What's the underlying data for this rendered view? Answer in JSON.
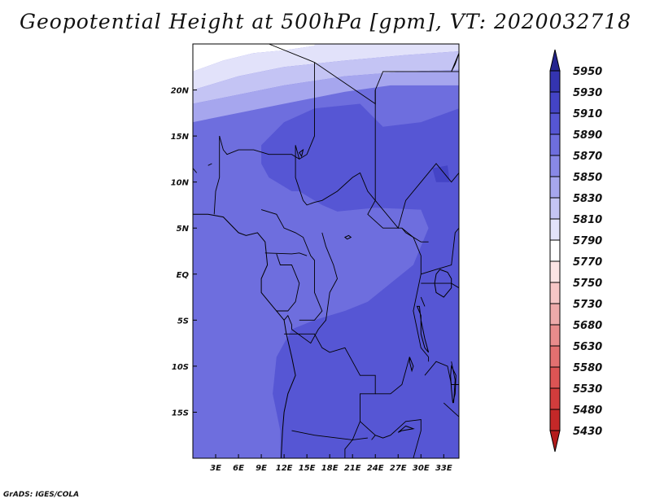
{
  "title": "Geopotential Height at 500hPa [gpm], VT: 2020032718",
  "credit": "GrADS: IGES/COLA",
  "chart_data": {
    "type": "heatmap",
    "lon_range": [
      0,
      35
    ],
    "lat_range": [
      -20,
      25
    ],
    "lon_ticks": [
      {
        "value": 3,
        "label": "3E"
      },
      {
        "value": 6,
        "label": "6E"
      },
      {
        "value": 9,
        "label": "9E"
      },
      {
        "value": 12,
        "label": "12E"
      },
      {
        "value": 15,
        "label": "15E"
      },
      {
        "value": 18,
        "label": "18E"
      },
      {
        "value": 21,
        "label": "21E"
      },
      {
        "value": 24,
        "label": "24E"
      },
      {
        "value": 27,
        "label": "27E"
      },
      {
        "value": 30,
        "label": "30E"
      },
      {
        "value": 33,
        "label": "33E"
      }
    ],
    "lat_ticks": [
      {
        "value": 20,
        "label": "20N"
      },
      {
        "value": 15,
        "label": "15N"
      },
      {
        "value": 10,
        "label": "10N"
      },
      {
        "value": 5,
        "label": "5N"
      },
      {
        "value": 0,
        "label": "EQ"
      },
      {
        "value": -5,
        "label": "5S"
      },
      {
        "value": -10,
        "label": "10S"
      },
      {
        "value": -15,
        "label": "15S"
      }
    ],
    "colorbar": {
      "levels": [
        "5430",
        "5480",
        "5530",
        "5580",
        "5630",
        "5680",
        "5730",
        "5750",
        "5770",
        "5790",
        "5810",
        "5830",
        "5850",
        "5870",
        "5890",
        "5910",
        "5930",
        "5950"
      ],
      "colors": [
        "#b41c1c",
        "#c42828",
        "#d23c3c",
        "#dc5454",
        "#e27070",
        "#e88c8c",
        "#eeaaaa",
        "#f6c6c6",
        "#fce4e4",
        "#ffffff",
        "#e2e2fa",
        "#c4c4f4",
        "#a6a6ee",
        "#8888e6",
        "#6e6ede",
        "#5656d4",
        "#4444c6",
        "#3434b0",
        "#24248e"
      ]
    },
    "field": [
      {
        "level": "5770",
        "color": "#fce4e4",
        "polygon": [
          [
            0,
            23.5
          ],
          [
            3,
            24
          ],
          [
            6,
            25
          ],
          [
            0,
            25
          ]
        ]
      },
      {
        "level": "5790",
        "color": "#ffffff",
        "polygon": [
          [
            0,
            22
          ],
          [
            4,
            23.2
          ],
          [
            8,
            24
          ],
          [
            12,
            24.3
          ],
          [
            16,
            24.8
          ],
          [
            16,
            25
          ],
          [
            0,
            25
          ]
        ]
      },
      {
        "level": "5810",
        "color": "#e2e2fa",
        "polygon": [
          [
            0,
            20
          ],
          [
            6,
            21.5
          ],
          [
            12,
            22.5
          ],
          [
            20,
            23.2
          ],
          [
            28,
            23.8
          ],
          [
            35,
            24.2
          ],
          [
            35,
            25
          ],
          [
            16,
            25
          ],
          [
            16,
            24.8
          ],
          [
            12,
            24.3
          ],
          [
            8,
            24
          ],
          [
            4,
            23.2
          ],
          [
            0,
            22
          ]
        ]
      },
      {
        "level": "5830",
        "color": "#c4c4f4",
        "polygon": [
          [
            0,
            18.5
          ],
          [
            6,
            19.5
          ],
          [
            12,
            20.5
          ],
          [
            20,
            21.5
          ],
          [
            28,
            22
          ],
          [
            35,
            22.2
          ],
          [
            35,
            24.2
          ],
          [
            28,
            23.8
          ],
          [
            20,
            23.2
          ],
          [
            12,
            22.5
          ],
          [
            6,
            21.5
          ],
          [
            0,
            20
          ]
        ]
      },
      {
        "level": "5850",
        "color": "#a6a6ee",
        "polygon": [
          [
            0,
            16.5
          ],
          [
            6,
            17.5
          ],
          [
            12,
            18.5
          ],
          [
            20,
            19.8
          ],
          [
            26,
            20.5
          ],
          [
            35,
            20.5
          ],
          [
            35,
            22.2
          ],
          [
            28,
            22
          ],
          [
            20,
            21.5
          ],
          [
            12,
            20.5
          ],
          [
            6,
            19.5
          ],
          [
            0,
            18.5
          ]
        ]
      },
      {
        "level": "5890",
        "color": "#5656d4",
        "polygon": [
          [
            9,
            14
          ],
          [
            12,
            16.5
          ],
          [
            16,
            18
          ],
          [
            22,
            18.5
          ],
          [
            25,
            16
          ],
          [
            30,
            16.5
          ],
          [
            35,
            18
          ],
          [
            35,
            -20
          ],
          [
            11.5,
            -20
          ],
          [
            11.5,
            -17
          ],
          [
            10.5,
            -13
          ],
          [
            11,
            -9
          ],
          [
            13,
            -6
          ],
          [
            16,
            -5
          ],
          [
            20,
            -4
          ],
          [
            23,
            -3
          ],
          [
            26,
            -1
          ],
          [
            29,
            1
          ],
          [
            31,
            5
          ],
          [
            30,
            7
          ],
          [
            24,
            7.2
          ],
          [
            19,
            6.8
          ],
          [
            17,
            7.5
          ],
          [
            14,
            9
          ],
          [
            13,
            9
          ],
          [
            12,
            9.5
          ],
          [
            10,
            10.5
          ],
          [
            9,
            12
          ]
        ]
      },
      {
        "level": "5910",
        "color": "#4444c6",
        "polygon": [
          [
            31.5,
            11.5
          ],
          [
            33.5,
            11.8
          ],
          [
            33.8,
            10
          ],
          [
            32,
            10
          ]
        ]
      }
    ],
    "coastline": [
      [
        0,
        6.5
      ],
      [
        2,
        6.5
      ],
      [
        4,
        6.2
      ],
      [
        6,
        4.5
      ],
      [
        7,
        4.2
      ],
      [
        8.5,
        4.5
      ],
      [
        9.5,
        3.5
      ],
      [
        9.8,
        1
      ],
      [
        9,
        -0.5
      ],
      [
        9,
        -2
      ],
      [
        10.5,
        -3.5
      ],
      [
        12,
        -5
      ],
      [
        12.3,
        -6.5
      ],
      [
        13,
        -9
      ],
      [
        13.5,
        -11
      ],
      [
        12.5,
        -13
      ],
      [
        12,
        -15
      ],
      [
        11.8,
        -17
      ],
      [
        11.6,
        -20
      ]
    ],
    "borders": [
      [
        [
          3.5,
          25
        ],
        [
          10,
          25
        ],
        [
          16,
          23
        ],
        [
          24,
          18.5
        ],
        [
          24,
          20
        ],
        [
          25,
          22
        ],
        [
          35,
          22
        ]
      ],
      [
        [
          16,
          23
        ],
        [
          16,
          15
        ],
        [
          15,
          13
        ],
        [
          14,
          12.5
        ],
        [
          13.5,
          14
        ],
        [
          13.5,
          10.5
        ],
        [
          14.5,
          8
        ],
        [
          15,
          7.5
        ],
        [
          16,
          7.8
        ],
        [
          17,
          8
        ],
        [
          19,
          9
        ],
        [
          21,
          10.5
        ],
        [
          22,
          11
        ],
        [
          23,
          9
        ],
        [
          24,
          8
        ],
        [
          23,
          6.5
        ],
        [
          25,
          5
        ],
        [
          27.5,
          5
        ],
        [
          28,
          4.5
        ],
        [
          30,
          3.5
        ],
        [
          31,
          3.5
        ]
      ],
      [
        [
          24,
          20
        ],
        [
          24,
          8
        ],
        [
          27,
          5
        ],
        [
          28,
          8
        ],
        [
          30,
          10
        ],
        [
          32,
          12
        ],
        [
          34,
          10
        ],
        [
          35,
          11
        ]
      ],
      [
        [
          3.5,
          15
        ],
        [
          4,
          13.5
        ],
        [
          4.5,
          13
        ],
        [
          6,
          13.5
        ],
        [
          8,
          13.5
        ],
        [
          10,
          13
        ],
        [
          13,
          13
        ],
        [
          14,
          12.5
        ]
      ],
      [
        [
          3.5,
          15
        ],
        [
          3.5,
          11.5
        ],
        [
          3.5,
          10.5
        ],
        [
          3,
          9
        ],
        [
          2.8,
          6.5
        ]
      ],
      [
        [
          2.5,
          12
        ],
        [
          2,
          11.8
        ]
      ],
      [
        [
          0,
          11.5
        ],
        [
          0.5,
          11
        ]
      ],
      [
        [
          9,
          7
        ],
        [
          11,
          6.5
        ],
        [
          12,
          5
        ],
        [
          13.5,
          4.5
        ],
        [
          14.5,
          4
        ],
        [
          15.5,
          2
        ],
        [
          16,
          1.5
        ],
        [
          16,
          -2
        ],
        [
          17,
          -4
        ],
        [
          16,
          -5
        ],
        [
          14,
          -5
        ]
      ],
      [
        [
          9.5,
          2.3
        ],
        [
          13,
          2.2
        ],
        [
          14,
          2.3
        ],
        [
          15,
          2
        ]
      ],
      [
        [
          11,
          2.2
        ],
        [
          11.5,
          1
        ],
        [
          13,
          1
        ],
        [
          14,
          -1
        ],
        [
          13.5,
          -3
        ],
        [
          12.5,
          -4
        ],
        [
          11,
          -4
        ]
      ],
      [
        [
          17,
          4.5
        ],
        [
          17.5,
          3
        ],
        [
          18.5,
          1
        ],
        [
          19,
          -0.5
        ],
        [
          18,
          -2
        ],
        [
          17.5,
          -5
        ],
        [
          16.5,
          -6
        ],
        [
          15.5,
          -7.5
        ],
        [
          13,
          -6
        ]
      ],
      [
        [
          12,
          -5
        ],
        [
          12.5,
          -4.5
        ],
        [
          13,
          -5.5
        ],
        [
          13,
          -6
        ]
      ],
      [
        [
          12,
          -6.5
        ],
        [
          16,
          -6.5
        ],
        [
          17,
          -8
        ],
        [
          18,
          -8.5
        ],
        [
          20,
          -8
        ],
        [
          21,
          -9.5
        ],
        [
          22,
          -11
        ],
        [
          24,
          -11
        ],
        [
          24,
          -13
        ],
        [
          22,
          -13
        ],
        [
          22,
          -16
        ],
        [
          21,
          -18
        ],
        [
          20,
          -19
        ],
        [
          20,
          -20
        ]
      ],
      [
        [
          27.5,
          5
        ],
        [
          29,
          4
        ],
        [
          30,
          2
        ],
        [
          30,
          0
        ],
        [
          29.5,
          -2
        ],
        [
          29,
          -4
        ],
        [
          29.5,
          -6
        ],
        [
          30,
          -8
        ],
        [
          31,
          -9
        ],
        [
          31,
          -9.5
        ]
      ],
      [
        [
          30,
          0
        ],
        [
          32,
          0.5
        ],
        [
          34,
          1
        ],
        [
          34.5,
          4.5
        ],
        [
          35,
          5
        ]
      ],
      [
        [
          30,
          -1
        ],
        [
          32,
          -1
        ],
        [
          34,
          -1
        ],
        [
          35,
          -1.5
        ]
      ],
      [
        [
          30,
          -2.5
        ],
        [
          30.5,
          -3.5
        ]
      ],
      [
        [
          28.5,
          -9
        ],
        [
          27.5,
          -12
        ],
        [
          26,
          -13
        ],
        [
          24,
          -13
        ]
      ],
      [
        [
          22,
          -16
        ],
        [
          24,
          -17.5
        ],
        [
          25,
          -17.8
        ],
        [
          26,
          -17.5
        ],
        [
          28,
          -16
        ],
        [
          30,
          -15.8
        ],
        [
          30,
          -17
        ],
        [
          29,
          -20
        ]
      ],
      [
        [
          24,
          -17.5
        ],
        [
          23.5,
          -18
        ]
      ],
      [
        [
          13,
          -17
        ],
        [
          16,
          -17.5
        ],
        [
          21,
          -18
        ],
        [
          23,
          -17.8
        ]
      ],
      [
        [
          30.5,
          -11
        ],
        [
          32,
          -9.5
        ],
        [
          33.5,
          -10
        ],
        [
          34,
          -12
        ],
        [
          35,
          -12
        ]
      ],
      [
        [
          33,
          -14
        ],
        [
          35,
          -15.5
        ]
      ],
      [
        [
          34,
          -9.5
        ],
        [
          34.5,
          -11.5
        ],
        [
          34.3,
          -14
        ]
      ]
    ],
    "lakes": [
      [
        [
          32.5,
          0.5
        ],
        [
          33.5,
          0.2
        ],
        [
          34,
          -0.5
        ],
        [
          34,
          -1.5
        ],
        [
          33,
          -2.5
        ],
        [
          32,
          -2
        ],
        [
          31.8,
          -1
        ],
        [
          32,
          0
        ]
      ],
      [
        [
          29.5,
          -3.5
        ],
        [
          30,
          -4.5
        ],
        [
          30,
          -6.5
        ],
        [
          30.5,
          -8
        ],
        [
          31,
          -8.5
        ],
        [
          30.5,
          -7
        ],
        [
          30,
          -5
        ],
        [
          29.8,
          -3.5
        ]
      ],
      [
        [
          34,
          -10
        ],
        [
          34.6,
          -11
        ],
        [
          34.5,
          -13
        ],
        [
          34.2,
          -14
        ],
        [
          34,
          -12.5
        ],
        [
          33.9,
          -11
        ]
      ],
      [
        [
          28.5,
          -9
        ],
        [
          29,
          -10
        ],
        [
          28.8,
          -10.5
        ],
        [
          28.5,
          -9.5
        ]
      ],
      [
        [
          28,
          -16.5
        ],
        [
          29,
          -16.8
        ],
        [
          27.5,
          -17
        ],
        [
          27,
          -17.2
        ]
      ],
      [
        [
          20,
          4
        ],
        [
          20.5,
          4.2
        ],
        [
          20.8,
          4
        ],
        [
          20.3,
          3.8
        ]
      ],
      [
        [
          14,
          13.2
        ],
        [
          14.5,
          13.5
        ],
        [
          14.3,
          12.8
        ]
      ],
      [
        [
          34,
          22
        ],
        [
          34.5,
          22.8
        ],
        [
          34.8,
          23.5
        ],
        [
          35,
          24
        ]
      ]
    ]
  }
}
